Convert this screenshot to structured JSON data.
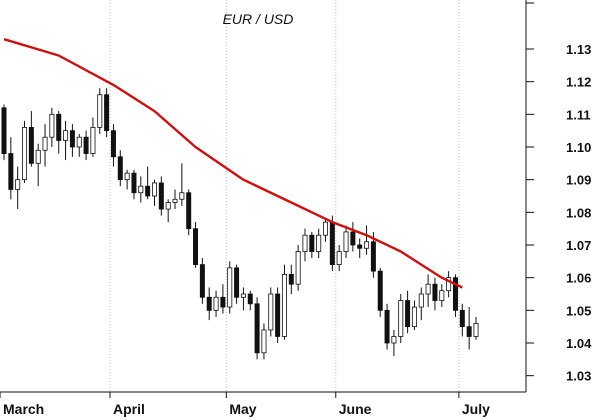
{
  "chart_data": {
    "type": "candlestick",
    "title": "EUR / USD",
    "ylim": [
      1.025,
      1.145
    ],
    "y_ticks": [
      1.03,
      1.04,
      1.05,
      1.06,
      1.07,
      1.08,
      1.09,
      1.1,
      1.11,
      1.12,
      1.13
    ],
    "y_tick_labels": [
      "1.03",
      "1.04",
      "1.05",
      "1.06",
      "1.07",
      "1.08",
      "1.09",
      "1.10",
      "1.11",
      "1.12",
      "1.13"
    ],
    "months": [
      "March",
      "April",
      "May",
      "June",
      "July"
    ],
    "grid": "vertical dotted lines at month starts",
    "colors": {
      "moving_average": "#cc1111",
      "candle_up": "#ffffff",
      "candle_down": "#111111",
      "grid": "#bdbdbd"
    },
    "series": [
      {
        "type": "ohlc",
        "candles": [
          {
            "o": 1.112,
            "h": 1.113,
            "l": 1.096,
            "c": 1.098
          },
          {
            "o": 1.098,
            "h": 1.103,
            "l": 1.084,
            "c": 1.087
          },
          {
            "o": 1.087,
            "h": 1.094,
            "l": 1.081,
            "c": 1.09
          },
          {
            "o": 1.09,
            "h": 1.108,
            "l": 1.089,
            "c": 1.106
          },
          {
            "o": 1.106,
            "h": 1.111,
            "l": 1.094,
            "c": 1.095
          },
          {
            "o": 1.095,
            "h": 1.101,
            "l": 1.088,
            "c": 1.099
          },
          {
            "o": 1.099,
            "h": 1.107,
            "l": 1.094,
            "c": 1.103
          },
          {
            "o": 1.103,
            "h": 1.112,
            "l": 1.1,
            "c": 1.11
          },
          {
            "o": 1.11,
            "h": 1.111,
            "l": 1.098,
            "c": 1.102
          },
          {
            "o": 1.102,
            "h": 1.108,
            "l": 1.096,
            "c": 1.105
          },
          {
            "o": 1.105,
            "h": 1.107,
            "l": 1.097,
            "c": 1.1
          },
          {
            "o": 1.1,
            "h": 1.104,
            "l": 1.097,
            "c": 1.103
          },
          {
            "o": 1.103,
            "h": 1.105,
            "l": 1.096,
            "c": 1.098
          },
          {
            "o": 1.098,
            "h": 1.109,
            "l": 1.097,
            "c": 1.106
          },
          {
            "o": 1.106,
            "h": 1.118,
            "l": 1.104,
            "c": 1.116
          },
          {
            "o": 1.116,
            "h": 1.118,
            "l": 1.103,
            "c": 1.105
          },
          {
            "o": 1.105,
            "h": 1.107,
            "l": 1.094,
            "c": 1.097
          },
          {
            "o": 1.097,
            "h": 1.099,
            "l": 1.088,
            "c": 1.09
          },
          {
            "o": 1.09,
            "h": 1.093,
            "l": 1.087,
            "c": 1.092
          },
          {
            "o": 1.092,
            "h": 1.093,
            "l": 1.084,
            "c": 1.086
          },
          {
            "o": 1.086,
            "h": 1.091,
            "l": 1.083,
            "c": 1.088
          },
          {
            "o": 1.088,
            "h": 1.094,
            "l": 1.084,
            "c": 1.085
          },
          {
            "o": 1.085,
            "h": 1.09,
            "l": 1.082,
            "c": 1.089
          },
          {
            "o": 1.089,
            "h": 1.091,
            "l": 1.079,
            "c": 1.081
          },
          {
            "o": 1.081,
            "h": 1.084,
            "l": 1.077,
            "c": 1.083
          },
          {
            "o": 1.083,
            "h": 1.087,
            "l": 1.081,
            "c": 1.084
          },
          {
            "o": 1.084,
            "h": 1.095,
            "l": 1.082,
            "c": 1.086
          },
          {
            "o": 1.086,
            "h": 1.087,
            "l": 1.073,
            "c": 1.075
          },
          {
            "o": 1.075,
            "h": 1.077,
            "l": 1.063,
            "c": 1.064
          },
          {
            "o": 1.064,
            "h": 1.066,
            "l": 1.052,
            "c": 1.054
          },
          {
            "o": 1.054,
            "h": 1.057,
            "l": 1.047,
            "c": 1.05
          },
          {
            "o": 1.05,
            "h": 1.056,
            "l": 1.048,
            "c": 1.054
          },
          {
            "o": 1.054,
            "h": 1.058,
            "l": 1.049,
            "c": 1.051
          },
          {
            "o": 1.051,
            "h": 1.065,
            "l": 1.049,
            "c": 1.063
          },
          {
            "o": 1.063,
            "h": 1.064,
            "l": 1.052,
            "c": 1.054
          },
          {
            "o": 1.054,
            "h": 1.057,
            "l": 1.05,
            "c": 1.055
          },
          {
            "o": 1.055,
            "h": 1.056,
            "l": 1.05,
            "c": 1.052
          },
          {
            "o": 1.052,
            "h": 1.054,
            "l": 1.035,
            "c": 1.037
          },
          {
            "o": 1.037,
            "h": 1.046,
            "l": 1.035,
            "c": 1.044
          },
          {
            "o": 1.044,
            "h": 1.057,
            "l": 1.042,
            "c": 1.055
          },
          {
            "o": 1.055,
            "h": 1.057,
            "l": 1.04,
            "c": 1.042
          },
          {
            "o": 1.042,
            "h": 1.064,
            "l": 1.041,
            "c": 1.061
          },
          {
            "o": 1.061,
            "h": 1.064,
            "l": 1.055,
            "c": 1.058
          },
          {
            "o": 1.058,
            "h": 1.07,
            "l": 1.056,
            "c": 1.068
          },
          {
            "o": 1.068,
            "h": 1.075,
            "l": 1.065,
            "c": 1.073
          },
          {
            "o": 1.073,
            "h": 1.074,
            "l": 1.066,
            "c": 1.068
          },
          {
            "o": 1.068,
            "h": 1.075,
            "l": 1.066,
            "c": 1.073
          },
          {
            "o": 1.073,
            "h": 1.078,
            "l": 1.071,
            "c": 1.077
          },
          {
            "o": 1.077,
            "h": 1.079,
            "l": 1.062,
            "c": 1.064
          },
          {
            "o": 1.064,
            "h": 1.07,
            "l": 1.062,
            "c": 1.068
          },
          {
            "o": 1.068,
            "h": 1.076,
            "l": 1.066,
            "c": 1.074
          },
          {
            "o": 1.074,
            "h": 1.077,
            "l": 1.068,
            "c": 1.07
          },
          {
            "o": 1.07,
            "h": 1.072,
            "l": 1.066,
            "c": 1.069
          },
          {
            "o": 1.069,
            "h": 1.076,
            "l": 1.067,
            "c": 1.071
          },
          {
            "o": 1.071,
            "h": 1.074,
            "l": 1.06,
            "c": 1.062
          },
          {
            "o": 1.062,
            "h": 1.063,
            "l": 1.048,
            "c": 1.05
          },
          {
            "o": 1.05,
            "h": 1.052,
            "l": 1.038,
            "c": 1.04
          },
          {
            "o": 1.04,
            "h": 1.044,
            "l": 1.036,
            "c": 1.042
          },
          {
            "o": 1.042,
            "h": 1.055,
            "l": 1.04,
            "c": 1.053
          },
          {
            "o": 1.053,
            "h": 1.056,
            "l": 1.043,
            "c": 1.045
          },
          {
            "o": 1.045,
            "h": 1.053,
            "l": 1.044,
            "c": 1.051
          },
          {
            "o": 1.051,
            "h": 1.057,
            "l": 1.047,
            "c": 1.055
          },
          {
            "o": 1.055,
            "h": 1.061,
            "l": 1.051,
            "c": 1.058
          },
          {
            "o": 1.058,
            "h": 1.06,
            "l": 1.05,
            "c": 1.053
          },
          {
            "o": 1.053,
            "h": 1.058,
            "l": 1.051,
            "c": 1.056
          },
          {
            "o": 1.056,
            "h": 1.062,
            "l": 1.054,
            "c": 1.06
          },
          {
            "o": 1.06,
            "h": 1.061,
            "l": 1.048,
            "c": 1.05
          },
          {
            "o": 1.05,
            "h": 1.052,
            "l": 1.042,
            "c": 1.045
          },
          {
            "o": 1.045,
            "h": 1.051,
            "l": 1.038,
            "c": 1.042
          },
          {
            "o": 1.042,
            "h": 1.048,
            "l": 1.041,
            "c": 1.046
          }
        ]
      },
      {
        "type": "moving_average",
        "points": [
          [
            0,
            1.133
          ],
          [
            8,
            1.128
          ],
          [
            16,
            1.119
          ],
          [
            22,
            1.111
          ],
          [
            28,
            1.1
          ],
          [
            35,
            1.09
          ],
          [
            42,
            1.083
          ],
          [
            48,
            1.077
          ],
          [
            53,
            1.073
          ],
          [
            58,
            1.068
          ],
          [
            61,
            1.064
          ],
          [
            64,
            1.06
          ],
          [
            67,
            1.057
          ]
        ]
      }
    ]
  }
}
